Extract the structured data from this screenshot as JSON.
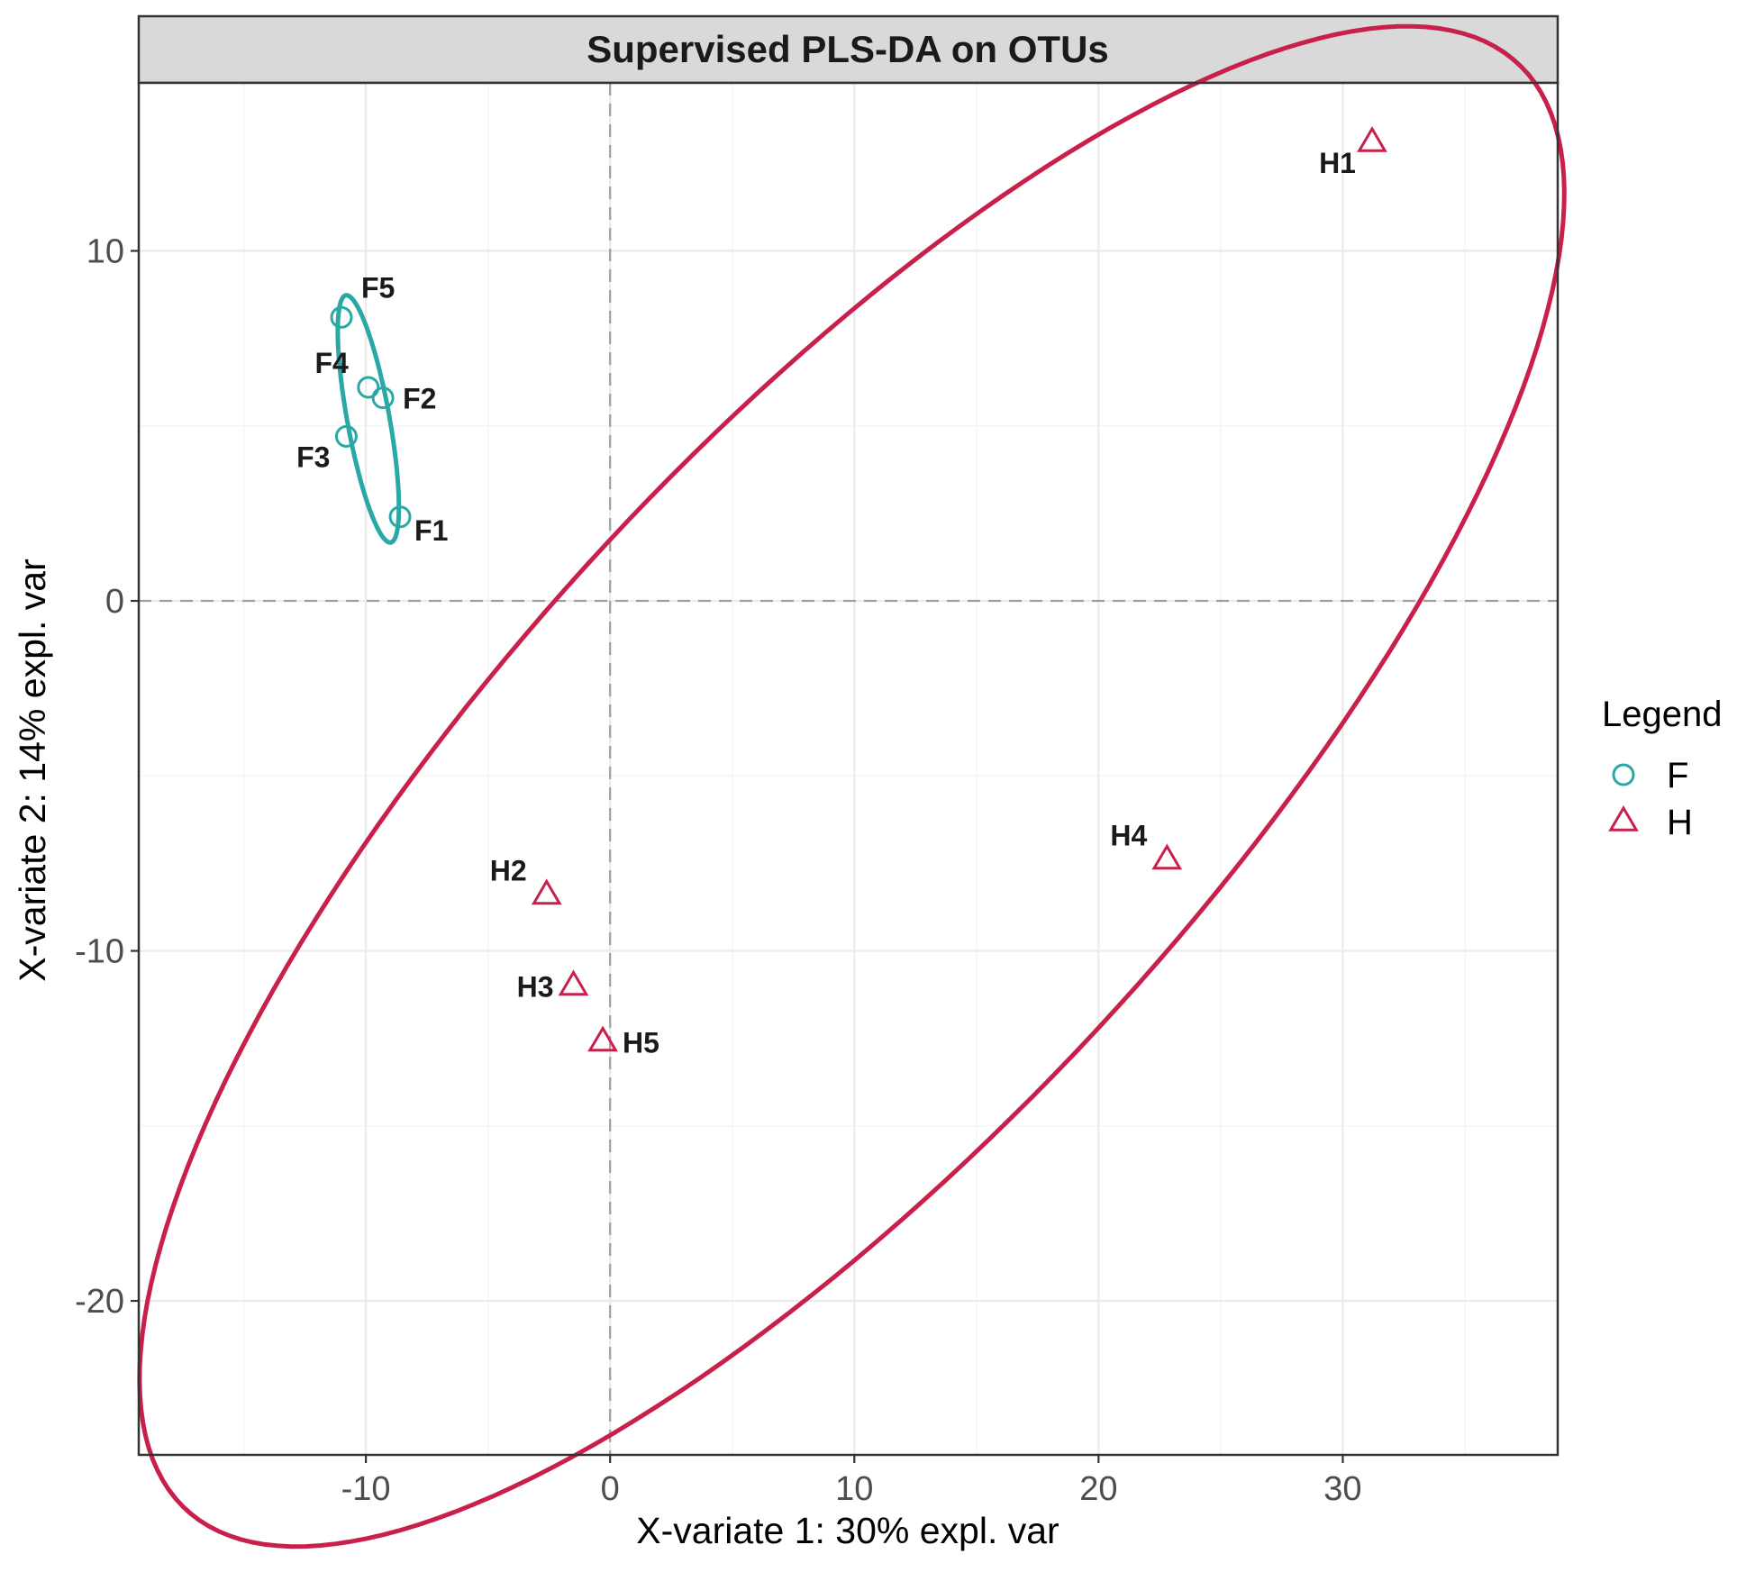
{
  "chart_data": {
    "type": "scatter",
    "title": "Supervised PLS-DA on OTUs",
    "xlabel": "X-variate 1: 30% expl. var",
    "ylabel": "X-variate 2: 14% expl. var",
    "xlim": [
      -19.3,
      38.8
    ],
    "ylim": [
      -24.4,
      14.8
    ],
    "x_ticks": [
      -10,
      0,
      10,
      20,
      30
    ],
    "y_ticks": [
      -20,
      -10,
      0,
      10
    ],
    "x_tick_labels": [
      "-10",
      "0",
      "10",
      "20",
      "30"
    ],
    "y_tick_labels": [
      "-20",
      "-10",
      "0",
      "10"
    ],
    "x_minor_ticks": [
      -15,
      -5,
      5,
      15,
      25,
      35
    ],
    "y_minor_ticks": [
      -15,
      -5,
      5
    ],
    "grid": true,
    "reference_lines": {
      "x": 0,
      "y": 0,
      "style": "dashed"
    },
    "legend": {
      "title": "Legend",
      "position": "right",
      "entries": [
        {
          "name": "F",
          "shape": "circle",
          "color": "#2aa8a6"
        },
        {
          "name": "H",
          "shape": "triangle",
          "color": "#c8204a"
        }
      ]
    },
    "series": [
      {
        "name": "F",
        "marker": "circle",
        "color": "#2aa8a6",
        "points": [
          {
            "label": "F1",
            "x": -8.6,
            "y": 2.4,
            "label_pos": "right-below"
          },
          {
            "label": "F2",
            "x": -9.3,
            "y": 5.8,
            "label_pos": "right"
          },
          {
            "label": "F3",
            "x": -10.8,
            "y": 4.7,
            "label_pos": "left-below"
          },
          {
            "label": "F4",
            "x": -9.9,
            "y": 6.1,
            "label_pos": "left-above"
          },
          {
            "label": "F5",
            "x": -11.0,
            "y": 8.1,
            "label_pos": "right-above"
          }
        ],
        "ellipse": {
          "center": [
            -9.9,
            5.2
          ],
          "semi_major": 3.65,
          "semi_minor": 0.85,
          "angle_deg": -75
        }
      },
      {
        "name": "H",
        "marker": "triangle",
        "color": "#c8204a",
        "points": [
          {
            "label": "H1",
            "x": 31.2,
            "y": 13.1,
            "label_pos": "left-below"
          },
          {
            "label": "H2",
            "x": -2.6,
            "y": -8.4,
            "label_pos": "left-above"
          },
          {
            "label": "H3",
            "x": -1.5,
            "y": -11.0,
            "label_pos": "left"
          },
          {
            "label": "H4",
            "x": 22.8,
            "y": -7.4,
            "label_pos": "left-above"
          },
          {
            "label": "H5",
            "x": -0.3,
            "y": -12.6,
            "label_pos": "right"
          }
        ],
        "ellipse": {
          "center": [
            9.9,
            -5.3
          ],
          "semi_major": 34.5,
          "semi_minor": 11.5,
          "angle_deg": 34.5
        }
      }
    ]
  },
  "colors": {
    "panel_border": "#333333",
    "strip_fill": "#d9d9d9",
    "grid_major": "#ebebeb",
    "grid_minor": "#f5f5f5",
    "reference_line": "#a0a0a0",
    "F": "#2aa8a6",
    "H": "#c8204a"
  }
}
